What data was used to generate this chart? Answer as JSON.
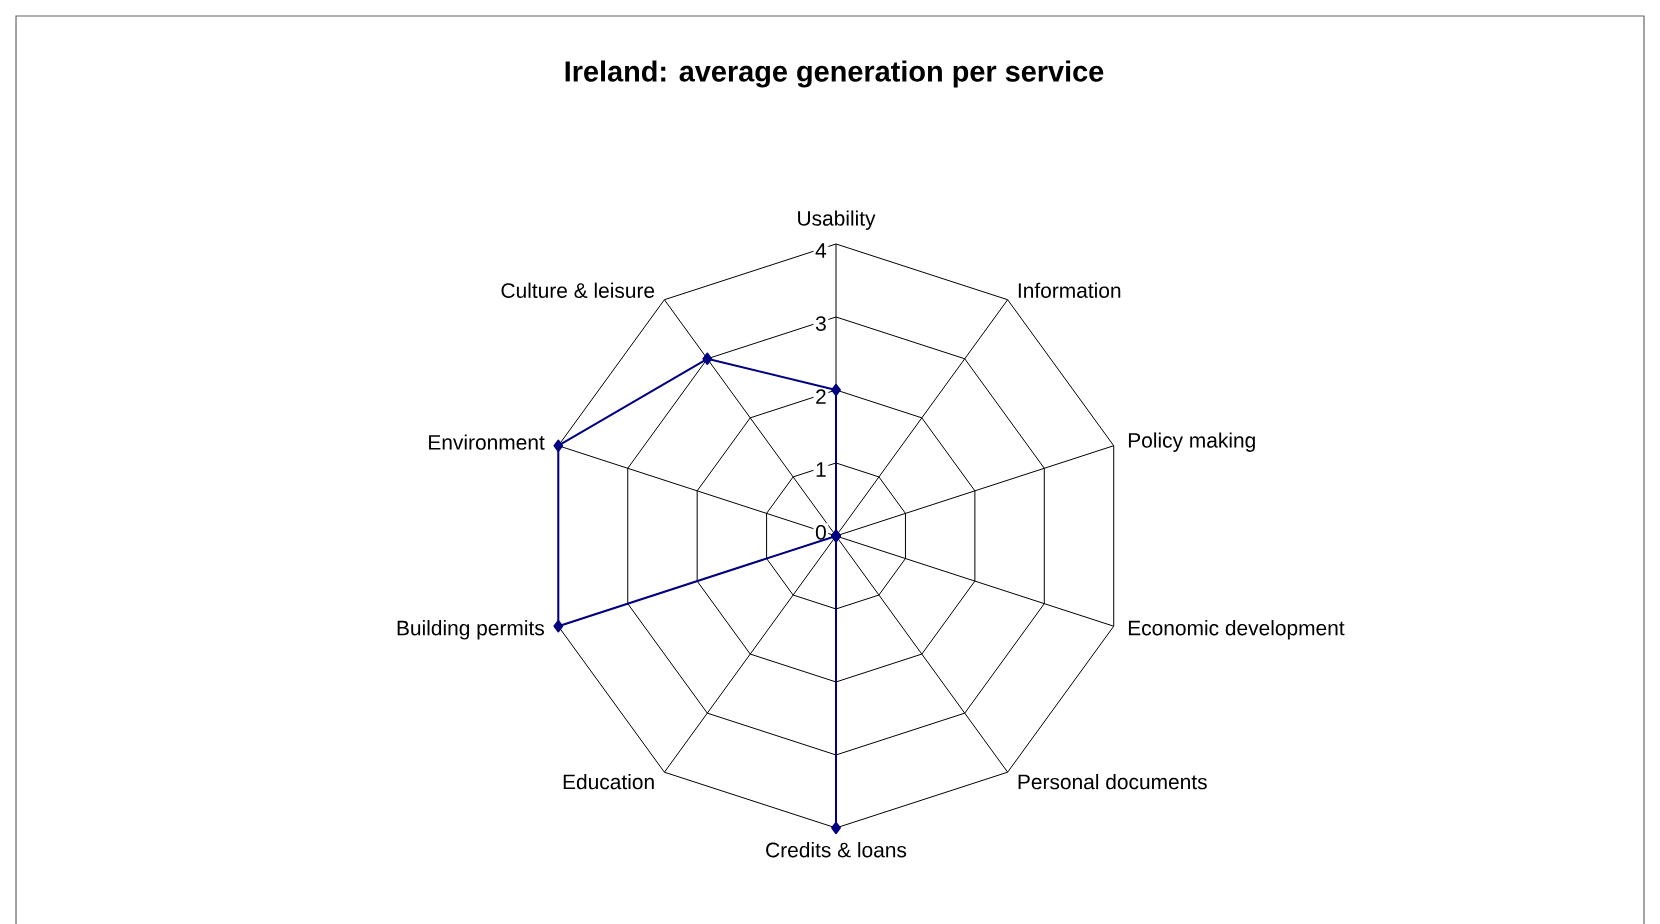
{
  "chart_data": {
    "type": "radar",
    "title": "Ireland: average generation per service",
    "categories": [
      "Usability",
      "Information",
      "Policy making",
      "Economic development",
      "Personal documents",
      "Credits & loans",
      "Education",
      "Building permits",
      "Environment",
      "Culture & leisure"
    ],
    "series": [
      {
        "color": "#000080",
        "values": [
          2,
          0,
          0,
          0,
          0,
          4,
          0,
          4,
          4,
          3
        ]
      }
    ],
    "ylim": [
      0,
      4
    ],
    "yticks": [
      0,
      1,
      2,
      3,
      4
    ],
    "marker": "diamond"
  }
}
